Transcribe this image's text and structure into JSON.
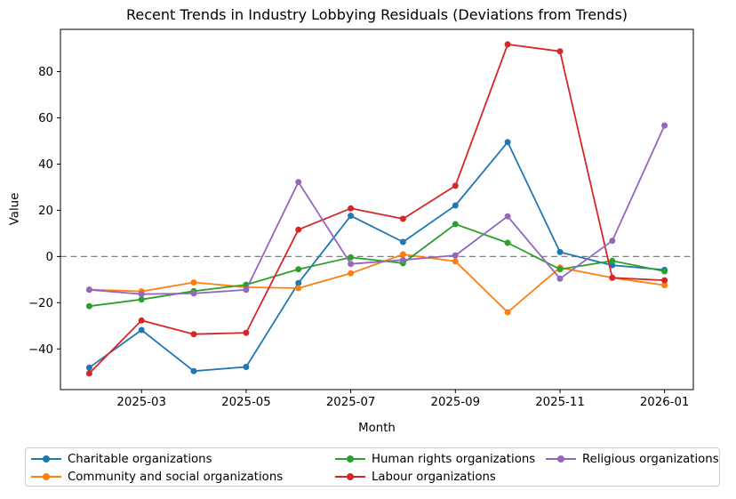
{
  "title": "Recent Trends in Industry Lobbying Residuals (Deviations from Trends)",
  "chart_data": {
    "type": "line",
    "title": "Recent Trends in Industry Lobbying Residuals (Deviations from Trends)",
    "xlabel": "Month",
    "ylabel": "Value",
    "x": [
      "2025-02",
      "2025-03",
      "2025-04",
      "2025-05",
      "2025-06",
      "2025-07",
      "2025-08",
      "2025-09",
      "2025-10",
      "2025-11",
      "2025-12",
      "2026-01"
    ],
    "x_tick_labels": [
      "2025-03",
      "2025-05",
      "2025-07",
      "2025-09",
      "2025-11",
      "2026-01"
    ],
    "x_tick_indices": [
      1,
      3,
      5,
      7,
      9,
      11
    ],
    "y_ticks": [
      -40,
      -20,
      0,
      20,
      40,
      60,
      80
    ],
    "ylim": [
      -57.6,
      98.3
    ],
    "grid": false,
    "legend_position": "below-3-columns",
    "zero_line": {
      "y": 0,
      "style": "dashed",
      "color": "#7f7f7f"
    },
    "axis_color": "#000000",
    "series": [
      {
        "name": "Charitable organizations",
        "color": "#1f77b4",
        "values": [
          -48.1,
          -31.8,
          -49.6,
          -47.8,
          -11.5,
          17.6,
          6.3,
          22.1,
          49.5,
          1.9,
          -3.8,
          -5.8
        ]
      },
      {
        "name": "Community and social organizations",
        "color": "#ff7f0e",
        "values": [
          -14.3,
          -15.1,
          -11.2,
          -13.3,
          -13.7,
          -7.3,
          0.9,
          -2.1,
          -24.1,
          -4.8,
          -9.2,
          -12.4
        ]
      },
      {
        "name": "Human rights organizations",
        "color": "#2ca02c",
        "values": [
          -21.5,
          -18.6,
          -15.0,
          -12.2,
          -5.5,
          -0.4,
          -2.9,
          14.0,
          5.9,
          -5.5,
          -1.9,
          -6.4
        ]
      },
      {
        "name": "Labour organizations",
        "color": "#d62728",
        "values": [
          -50.6,
          -27.7,
          -33.6,
          -33.0,
          11.6,
          20.8,
          16.3,
          30.6,
          91.8,
          88.8,
          -9.2,
          -10.3
        ]
      },
      {
        "name": "Religious organizations",
        "color": "#9467bd",
        "values": [
          -14.4,
          -16.3,
          -16.0,
          -14.4,
          32.2,
          -3.2,
          -1.5,
          0.5,
          17.4,
          -9.6,
          6.8,
          56.7
        ]
      }
    ]
  }
}
